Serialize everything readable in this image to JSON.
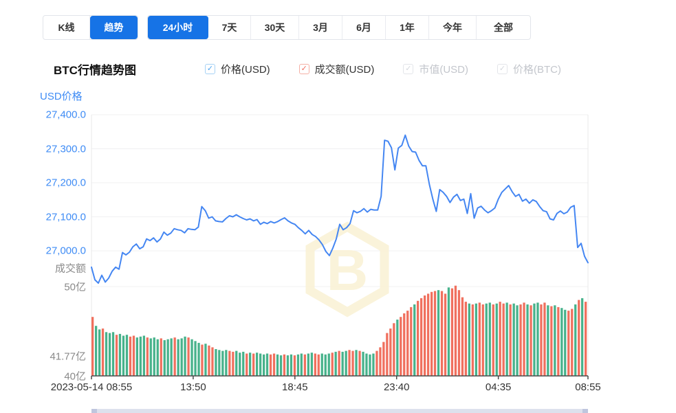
{
  "toolbar": {
    "chart_type_tabs": [
      {
        "label": "K线",
        "selected": false
      },
      {
        "label": "趋势",
        "selected": true
      }
    ],
    "range_tabs": [
      {
        "label": "24小时",
        "selected": true
      },
      {
        "label": "7天",
        "selected": false
      },
      {
        "label": "30天",
        "selected": false
      },
      {
        "label": "3月",
        "selected": false
      },
      {
        "label": "6月",
        "selected": false
      },
      {
        "label": "1年",
        "selected": false
      },
      {
        "label": "今年",
        "selected": false
      },
      {
        "label": "全部",
        "selected": false
      }
    ]
  },
  "chart_header": {
    "title": "BTC行情趋势图",
    "legend": [
      {
        "label": "价格(USD)",
        "checked": true,
        "enabled": true,
        "box_color": "#4aa3f0",
        "border_color": "#a6d2f5"
      },
      {
        "label": "成交额(USD)",
        "checked": true,
        "enabled": true,
        "box_color": "#f06b5d",
        "border_color": "#f5b0a5"
      },
      {
        "label": "市值(USD)",
        "checked": true,
        "enabled": false,
        "box_color": "#d4d7dd",
        "border_color": "#e3e5e9"
      },
      {
        "label": "价格(BTC)",
        "checked": true,
        "enabled": false,
        "box_color": "#d4d7dd",
        "border_color": "#e3e5e9"
      }
    ]
  },
  "chart_data": {
    "type": "line+bar",
    "title": "BTC行情趋势图",
    "date_start": "2023-05-14 08:55",
    "colors": {
      "price_line": "#4486f2",
      "bar_up_green": "#47b28b",
      "bar_down_red": "#f0705e",
      "axis_blue": "#3f8cf5",
      "axis_gray": "#8a8a8a",
      "grid": "#f0f0f2",
      "watermark": "#faf2d6"
    },
    "price_axis": {
      "name": "USD价格",
      "ticks": [
        {
          "label": "27,400.0",
          "value": 27400
        },
        {
          "label": "27,300.0",
          "value": 27300
        },
        {
          "label": "27,200.0",
          "value": 27200
        },
        {
          "label": "27,100.0",
          "value": 27100
        },
        {
          "label": "27,000.0",
          "value": 27000
        }
      ]
    },
    "volume_axis": {
      "name": "成交额",
      "ticks": [
        {
          "label": "50亿",
          "value": 50
        },
        {
          "label": "41.77亿",
          "value": 41.77
        },
        {
          "label": "40亿",
          "value": 40
        }
      ]
    },
    "x_axis": {
      "ticks": [
        {
          "label": "2023-05-14 08:55",
          "t": 0
        },
        {
          "label": "13:50",
          "t": 295
        },
        {
          "label": "18:45",
          "t": 590
        },
        {
          "label": "23:40",
          "t": 885
        },
        {
          "label": "04:35",
          "t": 1180
        },
        {
          "label": "08:55",
          "t": 1440
        }
      ],
      "minutes_total": 1440
    },
    "price_series_usd": [
      26952,
      26915,
      26905,
      26928,
      26908,
      26920,
      26940,
      26952,
      26946,
      26995,
      26988,
      26996,
      27012,
      27020,
      27006,
      27012,
      27035,
      27030,
      27038,
      27026,
      27035,
      27055,
      27046,
      27052,
      27065,
      27062,
      27060,
      27053,
      27065,
      27063,
      27062,
      27070,
      27130,
      27118,
      27096,
      27100,
      27088,
      27086,
      27085,
      27095,
      27103,
      27100,
      27106,
      27100,
      27095,
      27091,
      27094,
      27088,
      27092,
      27078,
      27084,
      27080,
      27086,
      27082,
      27086,
      27092,
      27097,
      27088,
      27082,
      27078,
      27068,
      27060,
      27050,
      27060,
      27048,
      27042,
      27032,
      27018,
      26998,
      26986,
      27008,
      27035,
      27078,
      27062,
      27068,
      27080,
      27118,
      27112,
      27116,
      27124,
      27114,
      27122,
      27120,
      27120,
      27160,
      27325,
      27322,
      27303,
      27238,
      27302,
      27310,
      27340,
      27308,
      27292,
      27290,
      27266,
      27250,
      27250,
      27195,
      27152,
      27116,
      27180,
      27172,
      27160,
      27142,
      27158,
      27166,
      27148,
      27152,
      27110,
      27168,
      27096,
      27126,
      27131,
      27120,
      27112,
      27118,
      27126,
      27152,
      27172,
      27182,
      27192,
      27174,
      27160,
      27166,
      27146,
      27152,
      27140,
      27150,
      27145,
      27130,
      27118,
      27115,
      27094,
      27091,
      27110,
      27117,
      27109,
      27114,
      27128,
      27133,
      27010,
      27022,
      26984,
      26965
    ],
    "volume_series_yi": [
      46.6,
      45.6,
      45.2,
      45.3,
      44.9,
      44.8,
      44.9,
      44.6,
      44.7,
      44.5,
      44.6,
      44.4,
      44.5,
      44.3,
      44.4,
      44.5,
      44.3,
      44.2,
      44.3,
      44.1,
      44.2,
      44.0,
      44.1,
      44.2,
      44.3,
      44.1,
      44.2,
      44.4,
      44.3,
      44.1,
      43.9,
      43.7,
      43.5,
      43.6,
      43.4,
      43.2,
      43.0,
      42.9,
      42.8,
      42.9,
      42.8,
      42.7,
      42.8,
      42.6,
      42.7,
      42.5,
      42.6,
      42.5,
      42.6,
      42.5,
      42.4,
      42.5,
      42.4,
      42.5,
      42.4,
      42.3,
      42.4,
      42.3,
      42.4,
      42.3,
      42.4,
      42.5,
      42.4,
      42.5,
      42.6,
      42.5,
      42.4,
      42.5,
      42.4,
      42.5,
      42.6,
      42.7,
      42.8,
      42.7,
      42.8,
      42.9,
      42.8,
      42.9,
      42.8,
      42.7,
      42.5,
      42.4,
      42.5,
      42.8,
      43.2,
      43.8,
      44.8,
      45.3,
      45.9,
      46.3,
      46.6,
      47.0,
      47.3,
      47.7,
      48.0,
      48.4,
      48.7,
      49.0,
      49.2,
      49.4,
      49.5,
      49.6,
      49.5,
      49.2,
      49.9,
      49.8,
      50.1,
      49.6,
      48.8,
      48.3,
      48.1,
      48.0,
      48.1,
      48.2,
      48.0,
      48.1,
      48.2,
      48.0,
      48.1,
      48.3,
      48.1,
      48.2,
      48.0,
      48.1,
      47.9,
      48.0,
      48.2,
      48.0,
      47.9,
      48.1,
      48.2,
      48.0,
      48.2,
      47.9,
      47.8,
      47.9,
      47.7,
      47.6,
      47.4,
      47.3,
      47.5,
      48.0,
      48.5,
      48.7,
      48.3
    ],
    "volume_bar_colors": "rggrgggrgggrrgggrgggrgggrgggrgggrgrrggggrrgggrgrggggrrggrggrggrggrrgggrgrggrrgrggggrrrrrrgrrrrgrrrrrrgrrgrrrrrgrgrrggrgrrgrggrrgrggrrgrgrggrrgrgr"
  }
}
